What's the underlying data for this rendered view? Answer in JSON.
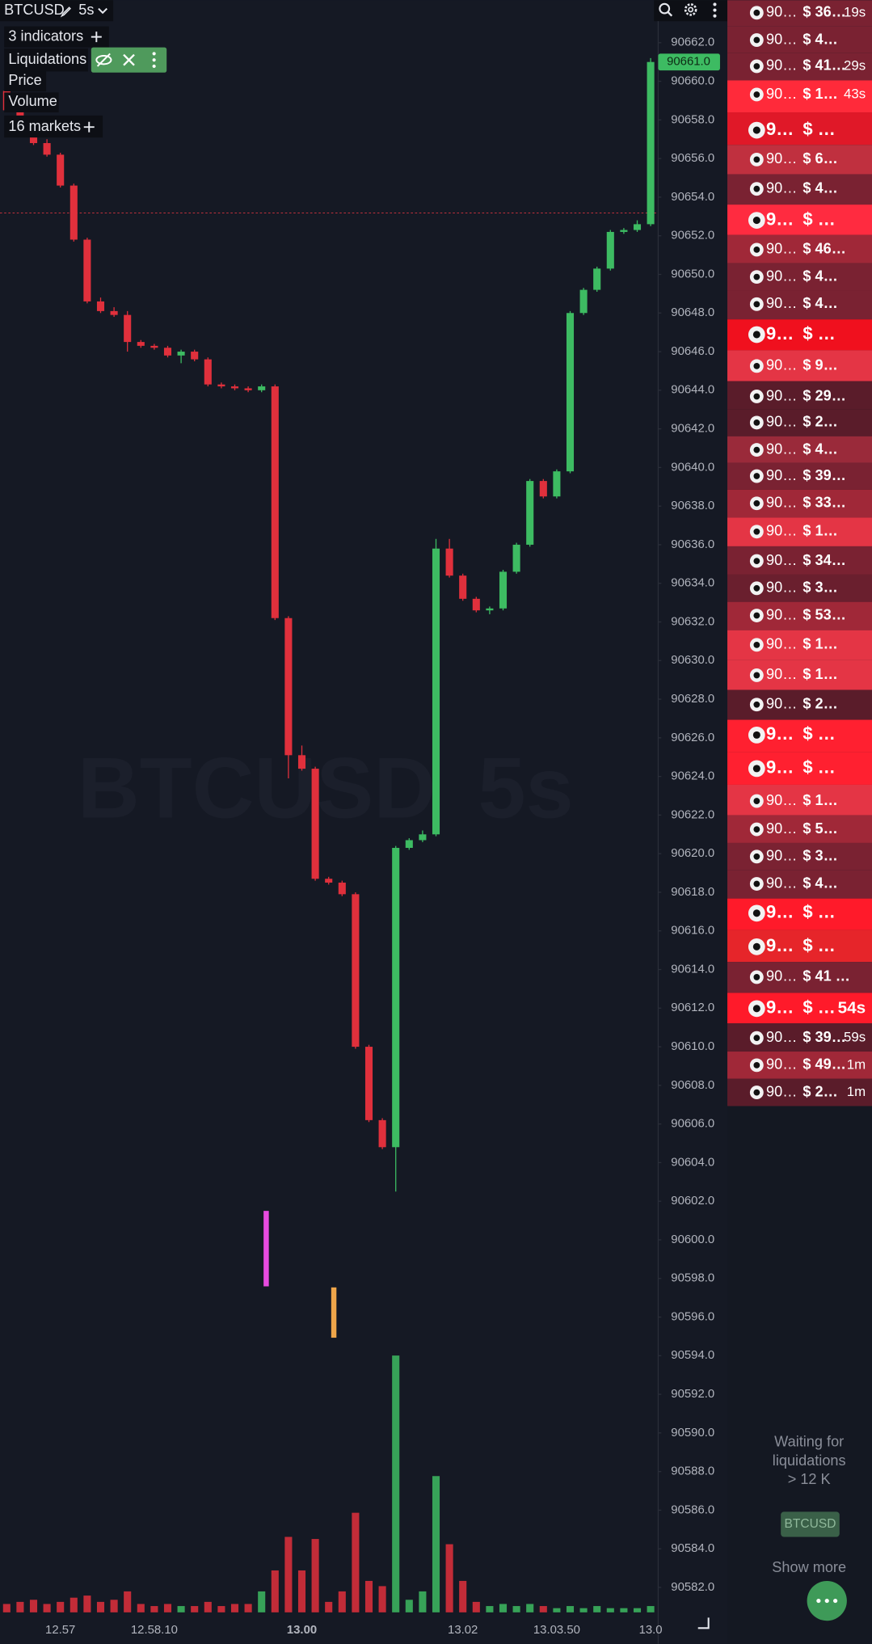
{
  "header": {
    "symbol": "BTCUSD",
    "interval": "5s"
  },
  "legend": {
    "indicators": "3 indicators",
    "liquidations": "Liquidations",
    "price": "Price",
    "volume": "Volume",
    "markets": "16 markets"
  },
  "watermark": {
    "symbol": "BTCUSD",
    "interval": "5s"
  },
  "chart_data": {
    "type": "candlestick",
    "categories": [
      null,
      null,
      null,
      null,
      "12.57",
      null,
      null,
      null,
      null,
      null,
      null,
      "12.58.10",
      null,
      null,
      null,
      null,
      null,
      null,
      null,
      null,
      null,
      null,
      "13.00",
      null,
      null,
      null,
      null,
      null,
      null,
      null,
      null,
      null,
      null,
      null,
      "13.02",
      null,
      null,
      null,
      null,
      null,
      null,
      "13.03.50",
      null,
      null,
      null,
      null,
      null,
      null,
      "13.0"
    ],
    "open": [
      90659.5,
      90658.5,
      90657.8,
      90656.8,
      90656.2,
      90654.6,
      90651.8,
      90648.6,
      90648.1,
      90647.9,
      90646.5,
      90646.3,
      90646.2,
      90645.8,
      90646.0,
      90645.6,
      90644.3,
      90644.2,
      90644.1,
      90644.0,
      90644.2,
      90632.2,
      90625.1,
      90624.4,
      90618.7,
      90618.5,
      90617.9,
      90610.0,
      90606.2,
      90604.8,
      90620.3,
      90620.7,
      90621.0,
      90635.8,
      90634.4,
      90633.2,
      90632.6,
      90632.7,
      90634.6,
      90636.0,
      90639.3,
      90638.5,
      90639.8,
      90648.0,
      90649.2,
      90650.3,
      90652.2,
      90652.3,
      90652.6
    ],
    "high": [
      90659.8,
      90658.7,
      90658.0,
      90657.0,
      90656.3,
      90654.7,
      90651.9,
      90648.8,
      90648.3,
      90648.1,
      90646.6,
      90646.4,
      90646.3,
      90646.1,
      90646.1,
      90645.7,
      90644.4,
      90644.3,
      90644.2,
      90644.3,
      90644.3,
      90632.3,
      90625.6,
      90624.5,
      90618.8,
      90618.6,
      90618.0,
      90610.1,
      90606.3,
      90620.4,
      90620.8,
      90621.2,
      90636.3,
      90636.3,
      90634.5,
      90633.3,
      90632.8,
      90634.7,
      90636.1,
      90639.4,
      90639.4,
      90639.9,
      90648.1,
      90649.3,
      90650.4,
      90652.3,
      90652.4,
      90652.8,
      90661.2
    ],
    "low": [
      90658.4,
      90657.7,
      90656.7,
      90656.1,
      90654.5,
      90651.7,
      90648.5,
      90648.0,
      90647.8,
      90646.0,
      90646.2,
      90646.1,
      90645.7,
      90645.4,
      90645.5,
      90644.2,
      90644.1,
      90644.0,
      90643.9,
      90643.9,
      90632.1,
      90623.9,
      90624.3,
      90618.6,
      90618.4,
      90617.8,
      90609.9,
      90606.1,
      90604.7,
      90602.5,
      90620.2,
      90620.6,
      90620.9,
      90634.3,
      90633.1,
      90632.5,
      90632.4,
      90632.6,
      90634.5,
      90635.9,
      90638.4,
      90638.4,
      90639.7,
      90647.9,
      90649.1,
      90650.2,
      90652.1,
      90652.2,
      90652.5
    ],
    "close": [
      90658.5,
      90657.8,
      90656.8,
      90656.2,
      90654.6,
      90651.8,
      90648.6,
      90648.1,
      90647.9,
      90646.5,
      90646.3,
      90646.2,
      90645.8,
      90646.0,
      90645.6,
      90644.3,
      90644.2,
      90644.1,
      90644.0,
      90644.2,
      90632.2,
      90625.1,
      90624.4,
      90618.7,
      90618.5,
      90617.9,
      90610.0,
      90606.2,
      90604.8,
      90620.3,
      90620.7,
      90621.0,
      90635.8,
      90634.4,
      90633.2,
      90632.6,
      90632.7,
      90634.6,
      90636.0,
      90639.3,
      90638.5,
      90639.8,
      90648.0,
      90649.2,
      90650.3,
      90652.2,
      90652.3,
      90652.6,
      90661.0
    ],
    "volume": [
      8,
      10,
      12,
      8,
      10,
      14,
      16,
      10,
      12,
      20,
      8,
      6,
      8,
      6,
      6,
      10,
      6,
      8,
      8,
      20,
      40,
      72,
      40,
      70,
      10,
      20,
      95,
      30,
      25,
      245,
      12,
      20,
      130,
      65,
      30,
      10,
      6,
      8,
      6,
      8,
      6,
      4,
      6,
      4,
      6,
      4,
      4,
      4,
      6
    ],
    "up_color": "#3dbb62",
    "down_color": "#e0303c",
    "ylim": [
      90580.6,
      90664.2
    ],
    "yticks": [
      {
        "value": 90582,
        "label": "90582.0"
      },
      {
        "value": 90584,
        "label": "90584.0"
      },
      {
        "value": 90586,
        "label": "90586.0"
      },
      {
        "value": 90588,
        "label": "90588.0"
      },
      {
        "value": 90590,
        "label": "90590.0"
      },
      {
        "value": 90592,
        "label": "90592.0"
      },
      {
        "value": 90594,
        "label": "90594.0"
      },
      {
        "value": 90596,
        "label": "90596.0"
      },
      {
        "value": 90598,
        "label": "90598.0"
      },
      {
        "value": 90600,
        "label": "90600.0"
      },
      {
        "value": 90602,
        "label": "90602.0"
      },
      {
        "value": 90604,
        "label": "90604.0"
      },
      {
        "value": 90606,
        "label": "90606.0"
      },
      {
        "value": 90608,
        "label": "90608.0"
      },
      {
        "value": 90610,
        "label": "90610.0"
      },
      {
        "value": 90612,
        "label": "90612.0"
      },
      {
        "value": 90614,
        "label": "90614.0"
      },
      {
        "value": 90616,
        "label": "90616.0"
      },
      {
        "value": 90618,
        "label": "90618.0"
      },
      {
        "value": 90620,
        "label": "90620.0"
      },
      {
        "value": 90622,
        "label": "90622.0"
      },
      {
        "value": 90624,
        "label": "90624.0"
      },
      {
        "value": 90626,
        "label": "90626.0"
      },
      {
        "value": 90628,
        "label": "90628.0"
      },
      {
        "value": 90630,
        "label": "90630.0"
      },
      {
        "value": 90632,
        "label": "90632.0"
      },
      {
        "value": 90634,
        "label": "90634.0"
      },
      {
        "value": 90636,
        "label": "90636.0"
      },
      {
        "value": 90638,
        "label": "90638.0"
      },
      {
        "value": 90640,
        "label": "90640.0"
      },
      {
        "value": 90642,
        "label": "90642.0"
      },
      {
        "value": 90644,
        "label": "90644.0"
      },
      {
        "value": 90646,
        "label": "90646.0"
      },
      {
        "value": 90648,
        "label": "90648.0"
      },
      {
        "value": 90650,
        "label": "90650.0"
      },
      {
        "value": 90652,
        "label": "90652.0"
      },
      {
        "value": 90654,
        "label": "90654.0"
      },
      {
        "value": 90656,
        "label": "90656.0"
      },
      {
        "value": 90658,
        "label": "90658.0"
      },
      {
        "value": 90660,
        "label": "90660.0"
      },
      {
        "value": 90662,
        "label": "90662.0"
      }
    ],
    "last_price": {
      "value": 90661,
      "label": "90661.0"
    }
  },
  "liquidations": {
    "rows": [
      {
        "price": "90…",
        "amount": "$ 36…",
        "time": "19s",
        "color": "#7a2232"
      },
      {
        "price": "90…",
        "amount": "$ 4…",
        "color": "#7a2232"
      },
      {
        "price": "90…",
        "amount": "$ 41…",
        "time": "29s",
        "color": "#7a2232"
      },
      {
        "price": "90…",
        "amount": "$ 1…",
        "time": "43s",
        "color": "#ff2a3a"
      },
      {
        "price": "9…",
        "amount": "$ …",
        "color": "#e01828"
      },
      {
        "price": "90…",
        "amount": "$ 6…",
        "color": "#c0303f"
      },
      {
        "price": "90…",
        "amount": "$ 4…",
        "color": "#7a2232"
      },
      {
        "price": "9…",
        "amount": "$ …",
        "color": "#ff2b40"
      },
      {
        "price": "90…",
        "amount": "$ 46…",
        "color": "#a02838"
      },
      {
        "price": "90…",
        "amount": "$ 4…",
        "color": "#7a2232"
      },
      {
        "price": "90…",
        "amount": "$ 4…",
        "color": "#7a2232"
      },
      {
        "price": "9…",
        "amount": "$ …",
        "color": "#f0101e"
      },
      {
        "price": "90…",
        "amount": "$ 9…",
        "color": "#e43545"
      },
      {
        "price": "90…",
        "amount": "$ 29…",
        "color": "#5a1c2a"
      },
      {
        "price": "90…",
        "amount": "$ 2…",
        "color": "#5a1c2a"
      },
      {
        "price": "90…",
        "amount": "$ 4…",
        "color": "#9a2a3a"
      },
      {
        "price": "90…",
        "amount": "$ 39…",
        "color": "#7a2232"
      },
      {
        "price": "90…",
        "amount": "$ 33…",
        "color": "#a02838"
      },
      {
        "price": "90…",
        "amount": "$ 1…",
        "color": "#e43545"
      },
      {
        "price": "90…",
        "amount": "$ 34…",
        "color": "#7a2232"
      },
      {
        "price": "90…",
        "amount": "$ 3…",
        "color": "#6a1f2e"
      },
      {
        "price": "90…",
        "amount": "$ 53…",
        "color": "#a02838"
      },
      {
        "price": "90…",
        "amount": "$ 1…",
        "color": "#e43545"
      },
      {
        "price": "90…",
        "amount": "$ 1…",
        "color": "#e43545"
      },
      {
        "price": "90…",
        "amount": "$ 2…",
        "color": "#5a1c2a"
      },
      {
        "price": "9…",
        "amount": "$ …",
        "color": "#ff2030"
      },
      {
        "price": "9…",
        "amount": "$ …",
        "color": "#ff2030"
      },
      {
        "price": "90…",
        "amount": "$ 1…",
        "color": "#e43545"
      },
      {
        "price": "90…",
        "amount": "$ 5…",
        "color": "#a02838"
      },
      {
        "price": "90…",
        "amount": "$ 3…",
        "color": "#7a2232"
      },
      {
        "price": "90…",
        "amount": "$ 4…",
        "color": "#7a2232"
      },
      {
        "price": "9…",
        "amount": "$ …",
        "color": "#ff1a2a"
      },
      {
        "price": "9…",
        "amount": "$ …",
        "color": "#e6252a"
      },
      {
        "price": "90…",
        "amount": "$ 41 …",
        "color": "#7a2232"
      },
      {
        "price": "9…",
        "amount": "$ …",
        "time": "54s",
        "color": "#ff1a2a"
      },
      {
        "price": "90…",
        "amount": "$ 39…",
        "time": "59s",
        "color": "#5a1c2a"
      },
      {
        "price": "90…",
        "amount": "$ 49…",
        "time": "1m",
        "color": "#a02838"
      },
      {
        "price": "90…",
        "amount": "$ 2…",
        "time": "1m",
        "color": "#5a1c2a"
      }
    ],
    "waiting": [
      "Waiting for",
      "liquidations",
      "> 12 K"
    ],
    "badge": "BTCUSD",
    "show_more": "Show more"
  }
}
